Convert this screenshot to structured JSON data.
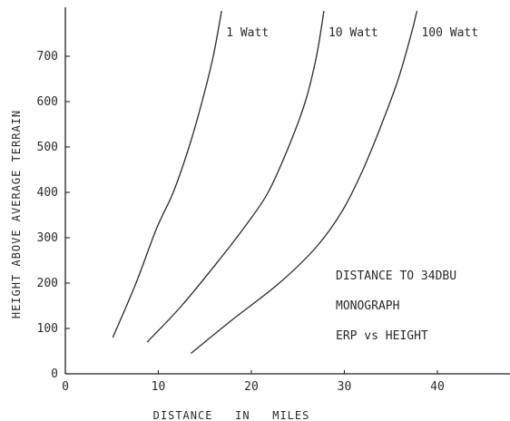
{
  "chart_data": {
    "type": "line",
    "xlabel": "DISTANCE   IN   MILES",
    "ylabel": "HEIGHT ABOVE AVERAGE TERRAIN",
    "xlim": [
      0,
      50
    ],
    "ylim": [
      0,
      800
    ],
    "xticks": [
      0,
      10,
      20,
      30,
      40
    ],
    "yticks": [
      0,
      100,
      200,
      300,
      400,
      500,
      600,
      700
    ],
    "grid": false,
    "series": [
      {
        "name": "1 Watt",
        "points": [
          [
            5.1,
            80
          ],
          [
            7.6,
            200
          ],
          [
            9.8,
            320
          ],
          [
            11.6,
            400
          ],
          [
            13.3,
            500
          ],
          [
            14.7,
            600
          ],
          [
            15.9,
            700
          ],
          [
            16.8,
            800
          ]
        ]
      },
      {
        "name": "10 Watt",
        "points": [
          [
            8.8,
            70
          ],
          [
            12.5,
            150
          ],
          [
            16.5,
            250
          ],
          [
            19.5,
            330
          ],
          [
            21.8,
            400
          ],
          [
            24.0,
            500
          ],
          [
            25.8,
            600
          ],
          [
            27.0,
            700
          ],
          [
            27.8,
            800
          ]
        ]
      },
      {
        "name": "100 Watt",
        "points": [
          [
            13.5,
            45
          ],
          [
            18.0,
            120
          ],
          [
            23.0,
            200
          ],
          [
            27.0,
            280
          ],
          [
            29.8,
            360
          ],
          [
            32.0,
            450
          ],
          [
            34.0,
            550
          ],
          [
            35.8,
            650
          ],
          [
            37.2,
            750
          ],
          [
            37.8,
            800
          ]
        ]
      }
    ],
    "annotations": [
      "DISTANCE TO 34DBU",
      "MONOGRAPH",
      "ERP vs HEIGHT"
    ]
  }
}
